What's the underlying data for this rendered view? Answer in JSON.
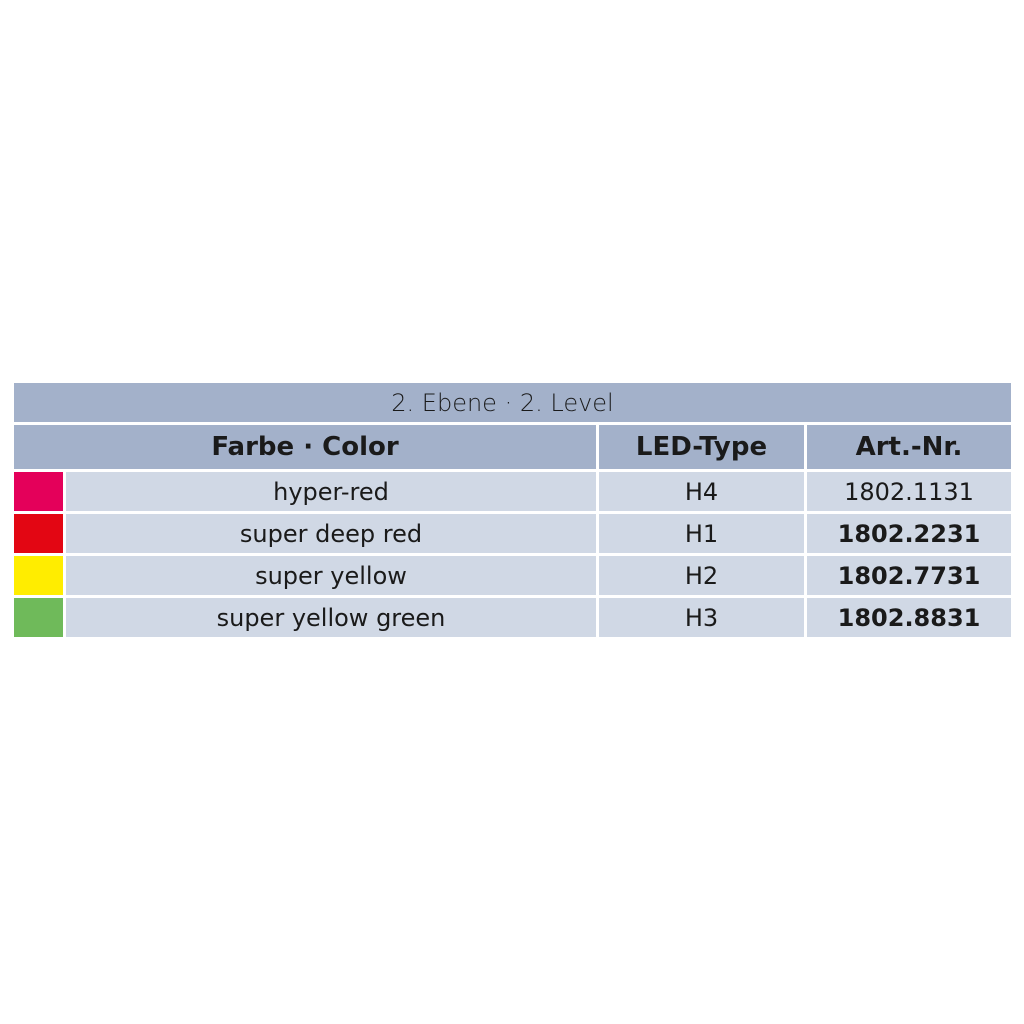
{
  "title": "2. Ebene · 2. Level",
  "headers": {
    "color": "Farbe · Color",
    "led_type": "LED-Type",
    "art_nr": "Art.-Nr."
  },
  "rows": [
    {
      "swatch": "#e4005a",
      "color": "hyper-red",
      "led_type": "H4",
      "art_nr": "1802.1131",
      "bold": false
    },
    {
      "swatch": "#e30613",
      "color": "super deep red",
      "led_type": "H1",
      "art_nr": "1802.2231",
      "bold": true
    },
    {
      "swatch": "#ffed00",
      "color": "super yellow",
      "led_type": "H2",
      "art_nr": "1802.7731",
      "bold": true
    },
    {
      "swatch": "#6fba5a",
      "color": "super yellow green",
      "led_type": "H3",
      "art_nr": "1802.8831",
      "bold": true
    }
  ]
}
